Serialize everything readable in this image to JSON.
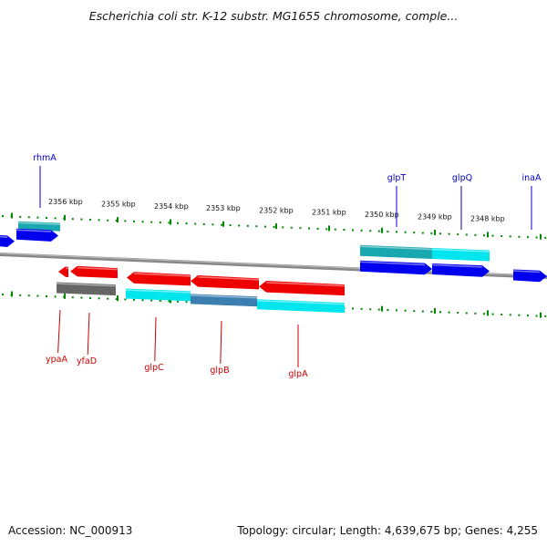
{
  "title": "Escherichia coli str. K-12 substr. MG1655 chromosome, comple...",
  "footer": {
    "accession": "Accession: NC_000913",
    "summary": "Topology: circular; Length: 4,639,675 bp; Genes: 4,255"
  },
  "ruler": {
    "labels": [
      "2356 kbp",
      "2355 kbp",
      "2354 kbp",
      "2353 kbp",
      "2352 kbp",
      "2351 kbp",
      "2350 kbp",
      "2349 kbp",
      "2348 kbp"
    ]
  },
  "genes": {
    "forward": [
      "rhmA",
      "glpT",
      "glpQ",
      "inaA"
    ],
    "reverse": [
      "ypaA",
      "yfaD",
      "glpC",
      "glpB",
      "glpA"
    ]
  },
  "colors": {
    "forward_label": "#0000cc",
    "reverse_label": "#cc0000",
    "cds_forward": "#0000ee",
    "cds_reverse": "#ee0000",
    "mrna": "#00e5ee",
    "mrna_dark": "#1aa8b0",
    "pseudo": "#666666",
    "tick": "#008800",
    "backbone": "#888888"
  }
}
